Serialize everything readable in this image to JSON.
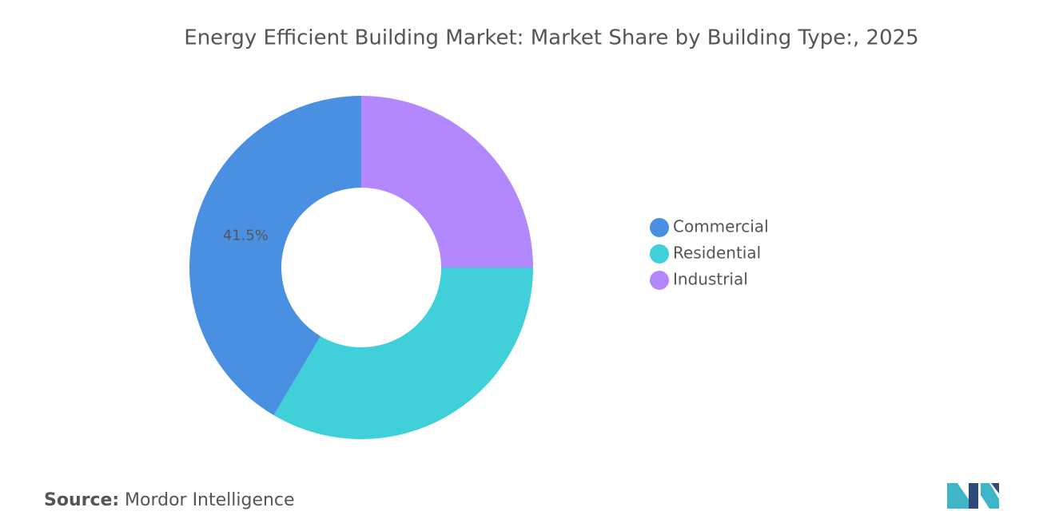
{
  "chart_data": {
    "type": "donut",
    "title": "Energy Efficient Building Market: Market Share by Building Type:, 2025",
    "categories": [
      "Commercial",
      "Residential",
      "Industrial"
    ],
    "values": [
      41.5,
      33.5,
      25
    ],
    "value_labels": [
      "41.5%",
      null,
      null
    ],
    "colors": [
      "#4a90e2",
      "#40d0da",
      "#b388ff"
    ],
    "legend": "right"
  },
  "footer": {
    "source_label": "Source:",
    "source": "Mordor Intelligence"
  }
}
